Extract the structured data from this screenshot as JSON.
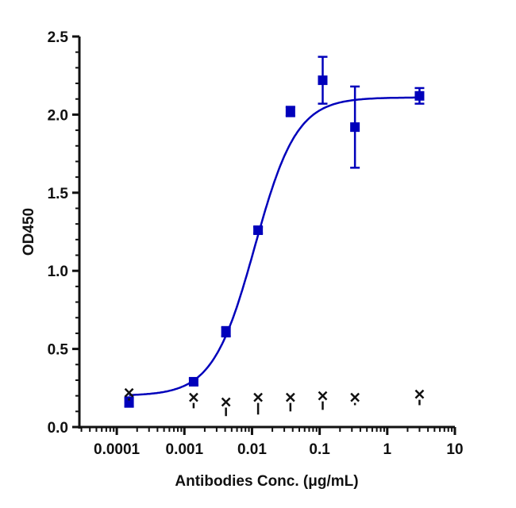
{
  "chart_data": {
    "type": "scatter",
    "title": "",
    "xlabel": "Antibodies Conc. (μg/mL)",
    "ylabel": "OD450",
    "xscale": "log",
    "xlim": [
      2.8e-05,
      10
    ],
    "ylim": [
      0,
      2.5
    ],
    "xticks": [
      "0.0001",
      "0.001",
      "0.01",
      "0.1",
      "1",
      "10"
    ],
    "yticks": [
      "0.0",
      "0.5",
      "1.0",
      "1.5",
      "2.0",
      "2.5"
    ],
    "grid": false,
    "legend": "none",
    "series": [
      {
        "marker": "square",
        "color": "#0000bb",
        "x": [
          0.000152,
          0.00137,
          0.00412,
          0.0123,
          0.037,
          0.111,
          0.333,
          3
        ],
        "y": [
          0.16,
          0.29,
          0.61,
          1.26,
          2.02,
          2.22,
          1.92,
          2.12
        ],
        "err": [
          0.03,
          0.02,
          0.03,
          0.02,
          0.03,
          0.15,
          0.26,
          0.05
        ],
        "fit": {
          "model": "4PL",
          "bottom": 0.2,
          "top": 2.11,
          "ec50": 0.011,
          "hill": 1.4
        }
      },
      {
        "marker": "x",
        "color": "#111111",
        "x": [
          0.000152,
          0.00137,
          0.00412,
          0.0123,
          0.037,
          0.111,
          0.333,
          3
        ],
        "y": [
          0.22,
          0.19,
          0.16,
          0.19,
          0.19,
          0.2,
          0.19,
          0.21
        ],
        "err": [
          0.05,
          0.07,
          0.09,
          0.11,
          0.09,
          0.09,
          0.05,
          0.07
        ]
      }
    ]
  }
}
